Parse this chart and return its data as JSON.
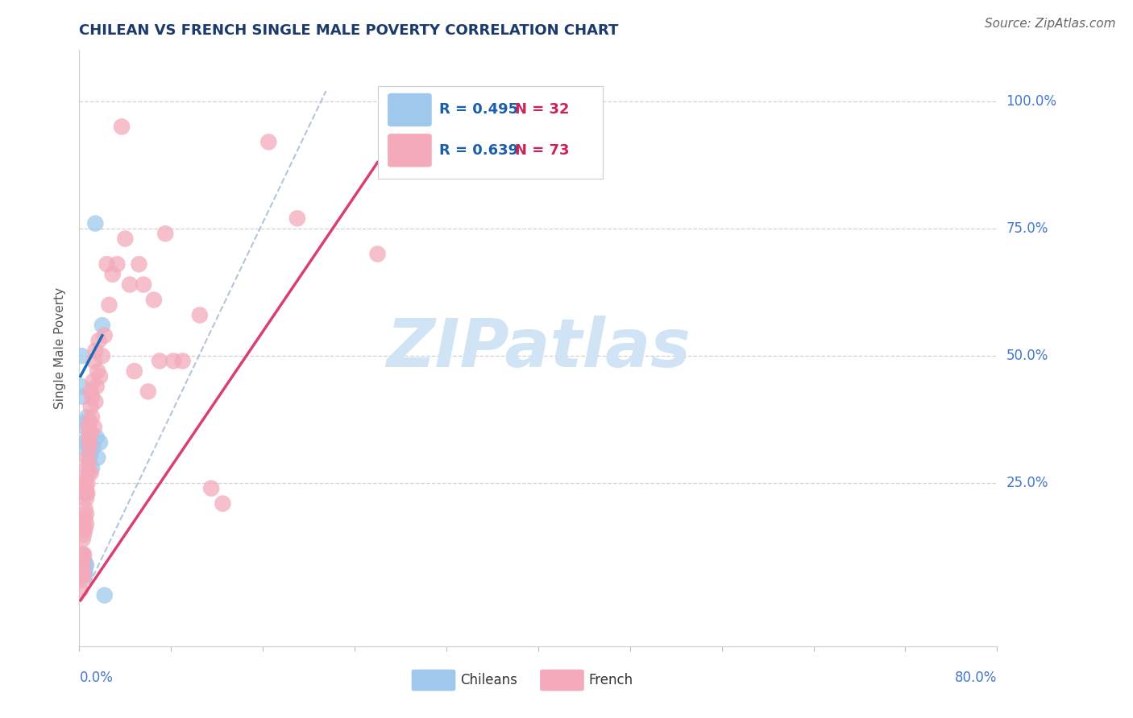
{
  "title": "CHILEAN VS FRENCH SINGLE MALE POVERTY CORRELATION CHART",
  "source": "Source: ZipAtlas.com",
  "ylabel": "Single Male Poverty",
  "xlim": [
    0.0,
    0.8
  ],
  "ylim": [
    -0.07,
    1.1
  ],
  "ytick_vals": [
    0.0,
    0.25,
    0.5,
    0.75,
    1.0
  ],
  "ytick_labels": [
    "",
    "25.0%",
    "50.0%",
    "75.0%",
    "100.0%"
  ],
  "xtick_vals": [
    0.0,
    0.08,
    0.16,
    0.24,
    0.32,
    0.4,
    0.48,
    0.56,
    0.64,
    0.72,
    0.8
  ],
  "chilean_color": "#9FC9EC",
  "french_color": "#F4AABB",
  "chilean_line_color": "#1E6BB8",
  "french_line_color": "#D94070",
  "ref_line_color": "#AABFDA",
  "title_color": "#1A3A6B",
  "axis_color": "#4477CC",
  "source_color": "#666666",
  "ylabel_color": "#555555",
  "watermark_text": "ZIPatlas",
  "watermark_color": "#D0E4F5",
  "legend_r_color": "#1A5FA8",
  "legend_n_color": "#CC2255",
  "chilean_R": 0.495,
  "chilean_N": 32,
  "french_R": 0.639,
  "french_N": 73,
  "chilean_points": [
    [
      0.002,
      0.5
    ],
    [
      0.002,
      0.44
    ],
    [
      0.002,
      0.1
    ],
    [
      0.003,
      0.07
    ],
    [
      0.003,
      0.08
    ],
    [
      0.003,
      0.09
    ],
    [
      0.003,
      0.11
    ],
    [
      0.003,
      0.42
    ],
    [
      0.004,
      0.07
    ],
    [
      0.004,
      0.08
    ],
    [
      0.004,
      0.1
    ],
    [
      0.004,
      0.32
    ],
    [
      0.005,
      0.08
    ],
    [
      0.005,
      0.09
    ],
    [
      0.005,
      0.36
    ],
    [
      0.005,
      0.33
    ],
    [
      0.005,
      0.07
    ],
    [
      0.006,
      0.37
    ],
    [
      0.006,
      0.09
    ],
    [
      0.006,
      0.23
    ],
    [
      0.007,
      0.38
    ],
    [
      0.008,
      0.34
    ],
    [
      0.009,
      0.3
    ],
    [
      0.01,
      0.31
    ],
    [
      0.011,
      0.28
    ],
    [
      0.012,
      0.32
    ],
    [
      0.014,
      0.76
    ],
    [
      0.015,
      0.34
    ],
    [
      0.016,
      0.3
    ],
    [
      0.018,
      0.33
    ],
    [
      0.02,
      0.56
    ],
    [
      0.022,
      0.03
    ]
  ],
  "french_points": [
    [
      0.001,
      0.04
    ],
    [
      0.002,
      0.07
    ],
    [
      0.002,
      0.06
    ],
    [
      0.002,
      0.08
    ],
    [
      0.003,
      0.11
    ],
    [
      0.003,
      0.17
    ],
    [
      0.003,
      0.09
    ],
    [
      0.003,
      0.1
    ],
    [
      0.003,
      0.14
    ],
    [
      0.004,
      0.07
    ],
    [
      0.004,
      0.16
    ],
    [
      0.004,
      0.11
    ],
    [
      0.004,
      0.15
    ],
    [
      0.005,
      0.2
    ],
    [
      0.005,
      0.23
    ],
    [
      0.005,
      0.16
    ],
    [
      0.005,
      0.18
    ],
    [
      0.005,
      0.25
    ],
    [
      0.006,
      0.19
    ],
    [
      0.006,
      0.22
    ],
    [
      0.006,
      0.24
    ],
    [
      0.006,
      0.17
    ],
    [
      0.006,
      0.26
    ],
    [
      0.007,
      0.28
    ],
    [
      0.007,
      0.23
    ],
    [
      0.007,
      0.3
    ],
    [
      0.007,
      0.25
    ],
    [
      0.008,
      0.34
    ],
    [
      0.008,
      0.29
    ],
    [
      0.008,
      0.27
    ],
    [
      0.008,
      0.36
    ],
    [
      0.009,
      0.32
    ],
    [
      0.009,
      0.37
    ],
    [
      0.009,
      0.33
    ],
    [
      0.01,
      0.4
    ],
    [
      0.01,
      0.35
    ],
    [
      0.01,
      0.43
    ],
    [
      0.01,
      0.27
    ],
    [
      0.011,
      0.42
    ],
    [
      0.011,
      0.38
    ],
    [
      0.012,
      0.45
    ],
    [
      0.013,
      0.36
    ],
    [
      0.013,
      0.49
    ],
    [
      0.014,
      0.41
    ],
    [
      0.014,
      0.51
    ],
    [
      0.015,
      0.44
    ],
    [
      0.016,
      0.47
    ],
    [
      0.017,
      0.53
    ],
    [
      0.018,
      0.46
    ],
    [
      0.02,
      0.5
    ],
    [
      0.022,
      0.54
    ],
    [
      0.024,
      0.68
    ],
    [
      0.026,
      0.6
    ],
    [
      0.029,
      0.66
    ],
    [
      0.033,
      0.68
    ],
    [
      0.037,
      0.95
    ],
    [
      0.04,
      0.73
    ],
    [
      0.044,
      0.64
    ],
    [
      0.048,
      0.47
    ],
    [
      0.052,
      0.68
    ],
    [
      0.056,
      0.64
    ],
    [
      0.06,
      0.43
    ],
    [
      0.065,
      0.61
    ],
    [
      0.07,
      0.49
    ],
    [
      0.075,
      0.74
    ],
    [
      0.082,
      0.49
    ],
    [
      0.09,
      0.49
    ],
    [
      0.105,
      0.58
    ],
    [
      0.115,
      0.24
    ],
    [
      0.125,
      0.21
    ],
    [
      0.165,
      0.92
    ],
    [
      0.19,
      0.77
    ],
    [
      0.26,
      0.7
    ]
  ],
  "chilean_line_pts": [
    [
      0.001,
      0.46
    ],
    [
      0.02,
      0.54
    ]
  ],
  "french_line_pts": [
    [
      0.001,
      0.02
    ],
    [
      0.26,
      0.88
    ]
  ],
  "ref_line_pts": [
    [
      0.002,
      0.02
    ],
    [
      0.215,
      1.02
    ]
  ]
}
